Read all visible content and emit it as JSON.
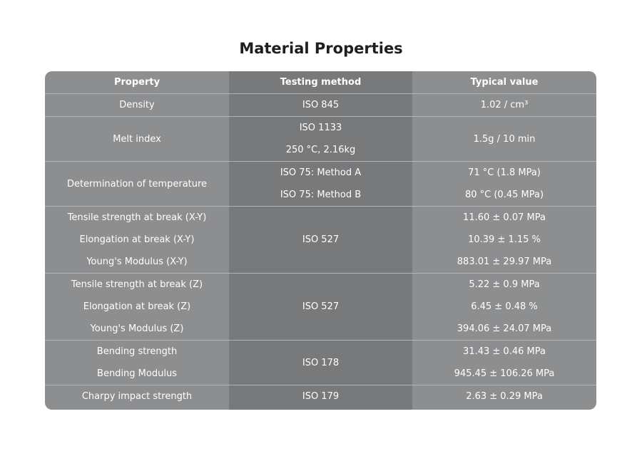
{
  "title": "Material Properties",
  "table": {
    "header": [
      "Property",
      "Testing method",
      "Typical value"
    ],
    "rows": [
      {
        "property": [
          "Density"
        ],
        "method": [
          "ISO 845"
        ],
        "value": [
          "1.02 / cm³"
        ]
      },
      {
        "property": [
          "Melt index"
        ],
        "method": [
          "ISO 1133",
          "250 °C, 2.16kg"
        ],
        "value": [
          "1.5g / 10 min"
        ]
      },
      {
        "property": [
          "Determination of temperature"
        ],
        "method": [
          "ISO 75: Method A",
          "ISO 75: Method B"
        ],
        "value": [
          "71 °C (1.8 MPa)",
          "80 °C (0.45 MPa)"
        ]
      },
      {
        "property": [
          "Tensile strength at break (X-Y)",
          "Elongation at break (X-Y)",
          "Young's Modulus (X-Y)"
        ],
        "method": [
          "ISO 527"
        ],
        "value": [
          "11.60 ± 0.07 MPa",
          "10.39 ± 1.15 %",
          "883.01 ± 29.97 MPa"
        ]
      },
      {
        "property": [
          "Tensile strength at break (Z)",
          "Elongation at break (Z)",
          "Young's Modulus (Z)"
        ],
        "method": [
          "ISO 527"
        ],
        "value": [
          "5.22 ± 0.9 MPa",
          "6.45 ± 0.48 %",
          "394.06 ± 24.07 MPa"
        ]
      },
      {
        "property": [
          "Bending strength",
          "Bending Modulus"
        ],
        "method": [
          "ISO 178"
        ],
        "value": [
          "31.43 ± 0.46 MPa",
          "945.45 ± 106.26 MPa"
        ]
      },
      {
        "property": [
          "Charpy impact strength"
        ],
        "method": [
          "ISO 179"
        ],
        "value": [
          "2.63 ± 0.29 MPa"
        ]
      }
    ]
  }
}
